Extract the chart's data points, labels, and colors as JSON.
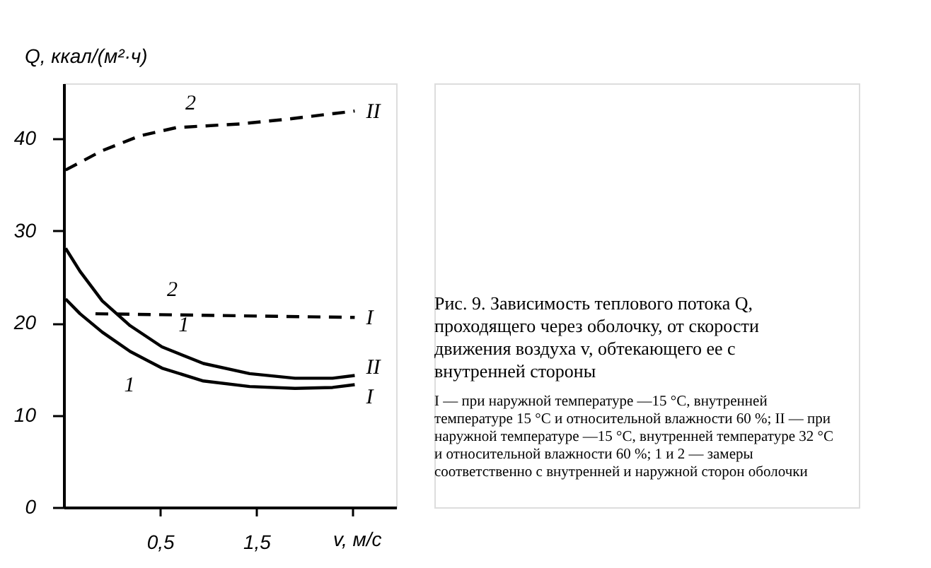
{
  "chart_data": {
    "type": "line",
    "title": "Рис. 9. Зависимость теплового потока Q, проходящего через оболочку, от скорости движения воздуха v, обтекающего ее с внутренней стороны",
    "subtitle": "I — при наружной температуре —15 °C, внутренней температуре 15 °C и относительной влажности 60 %; II — при наружной температуре —15 °C, внутренней температуре 32 °C и относительной влажности 60 %; 1 и 2 — замеры соответственно с внутренней и наружной сторон оболочки",
    "xlabel": "v, м/с",
    "ylabel": "Q, ккал/(м²·ч)",
    "xlim": [
      -0.5,
      2.95
    ],
    "ylim": [
      0,
      46
    ],
    "xticks": [
      {
        "value": 0.5,
        "label": "0,5"
      },
      {
        "value": 1.5,
        "label": "1,5"
      },
      {
        "value": 2.5,
        "label": null
      }
    ],
    "yticks": [
      0,
      10,
      20,
      30,
      40
    ],
    "grid": false,
    "marker": "none",
    "series": [
      {
        "name": "II",
        "color": "#000000",
        "line_style": "dashed",
        "x": [
          -0.48,
          -0.1,
          0.29,
          0.67,
          1.33,
          1.81,
          2.52
        ],
        "values": [
          36.6,
          38.7,
          40.3,
          41.2,
          41.6,
          42.1,
          43.0
        ]
      },
      {
        "name": "I",
        "color": "#000000",
        "line_style": "dashed",
        "x": [
          -0.17,
          2.52
        ],
        "values": [
          21.0,
          20.6
        ]
      },
      {
        "name": "II",
        "color": "#000000",
        "line_style": "solid",
        "x": [
          -0.48,
          -0.33,
          -0.1,
          0.19,
          0.52,
          0.95,
          1.43,
          1.9,
          2.29,
          2.52
        ],
        "values": [
          28.1,
          25.6,
          22.4,
          19.7,
          17.4,
          15.6,
          14.5,
          14.0,
          14.0,
          14.3
        ]
      },
      {
        "name": "I",
        "color": "#000000",
        "line_style": "solid",
        "x": [
          -0.48,
          -0.33,
          -0.1,
          0.19,
          0.52,
          0.95,
          1.43,
          1.9,
          2.29,
          2.52
        ],
        "values": [
          22.6,
          21.0,
          19.0,
          16.9,
          15.1,
          13.7,
          13.1,
          12.9,
          13.0,
          13.3
        ]
      }
    ],
    "annotations": [
      {
        "text": "2",
        "x": 0.67,
        "y": 41.2
      },
      {
        "text": "2",
        "x": 0.48,
        "y": 20.9
      },
      {
        "text": "1",
        "x": 0.6,
        "y": 17.1
      },
      {
        "text": "1",
        "x": 0.33,
        "y": 16.1
      }
    ]
  }
}
